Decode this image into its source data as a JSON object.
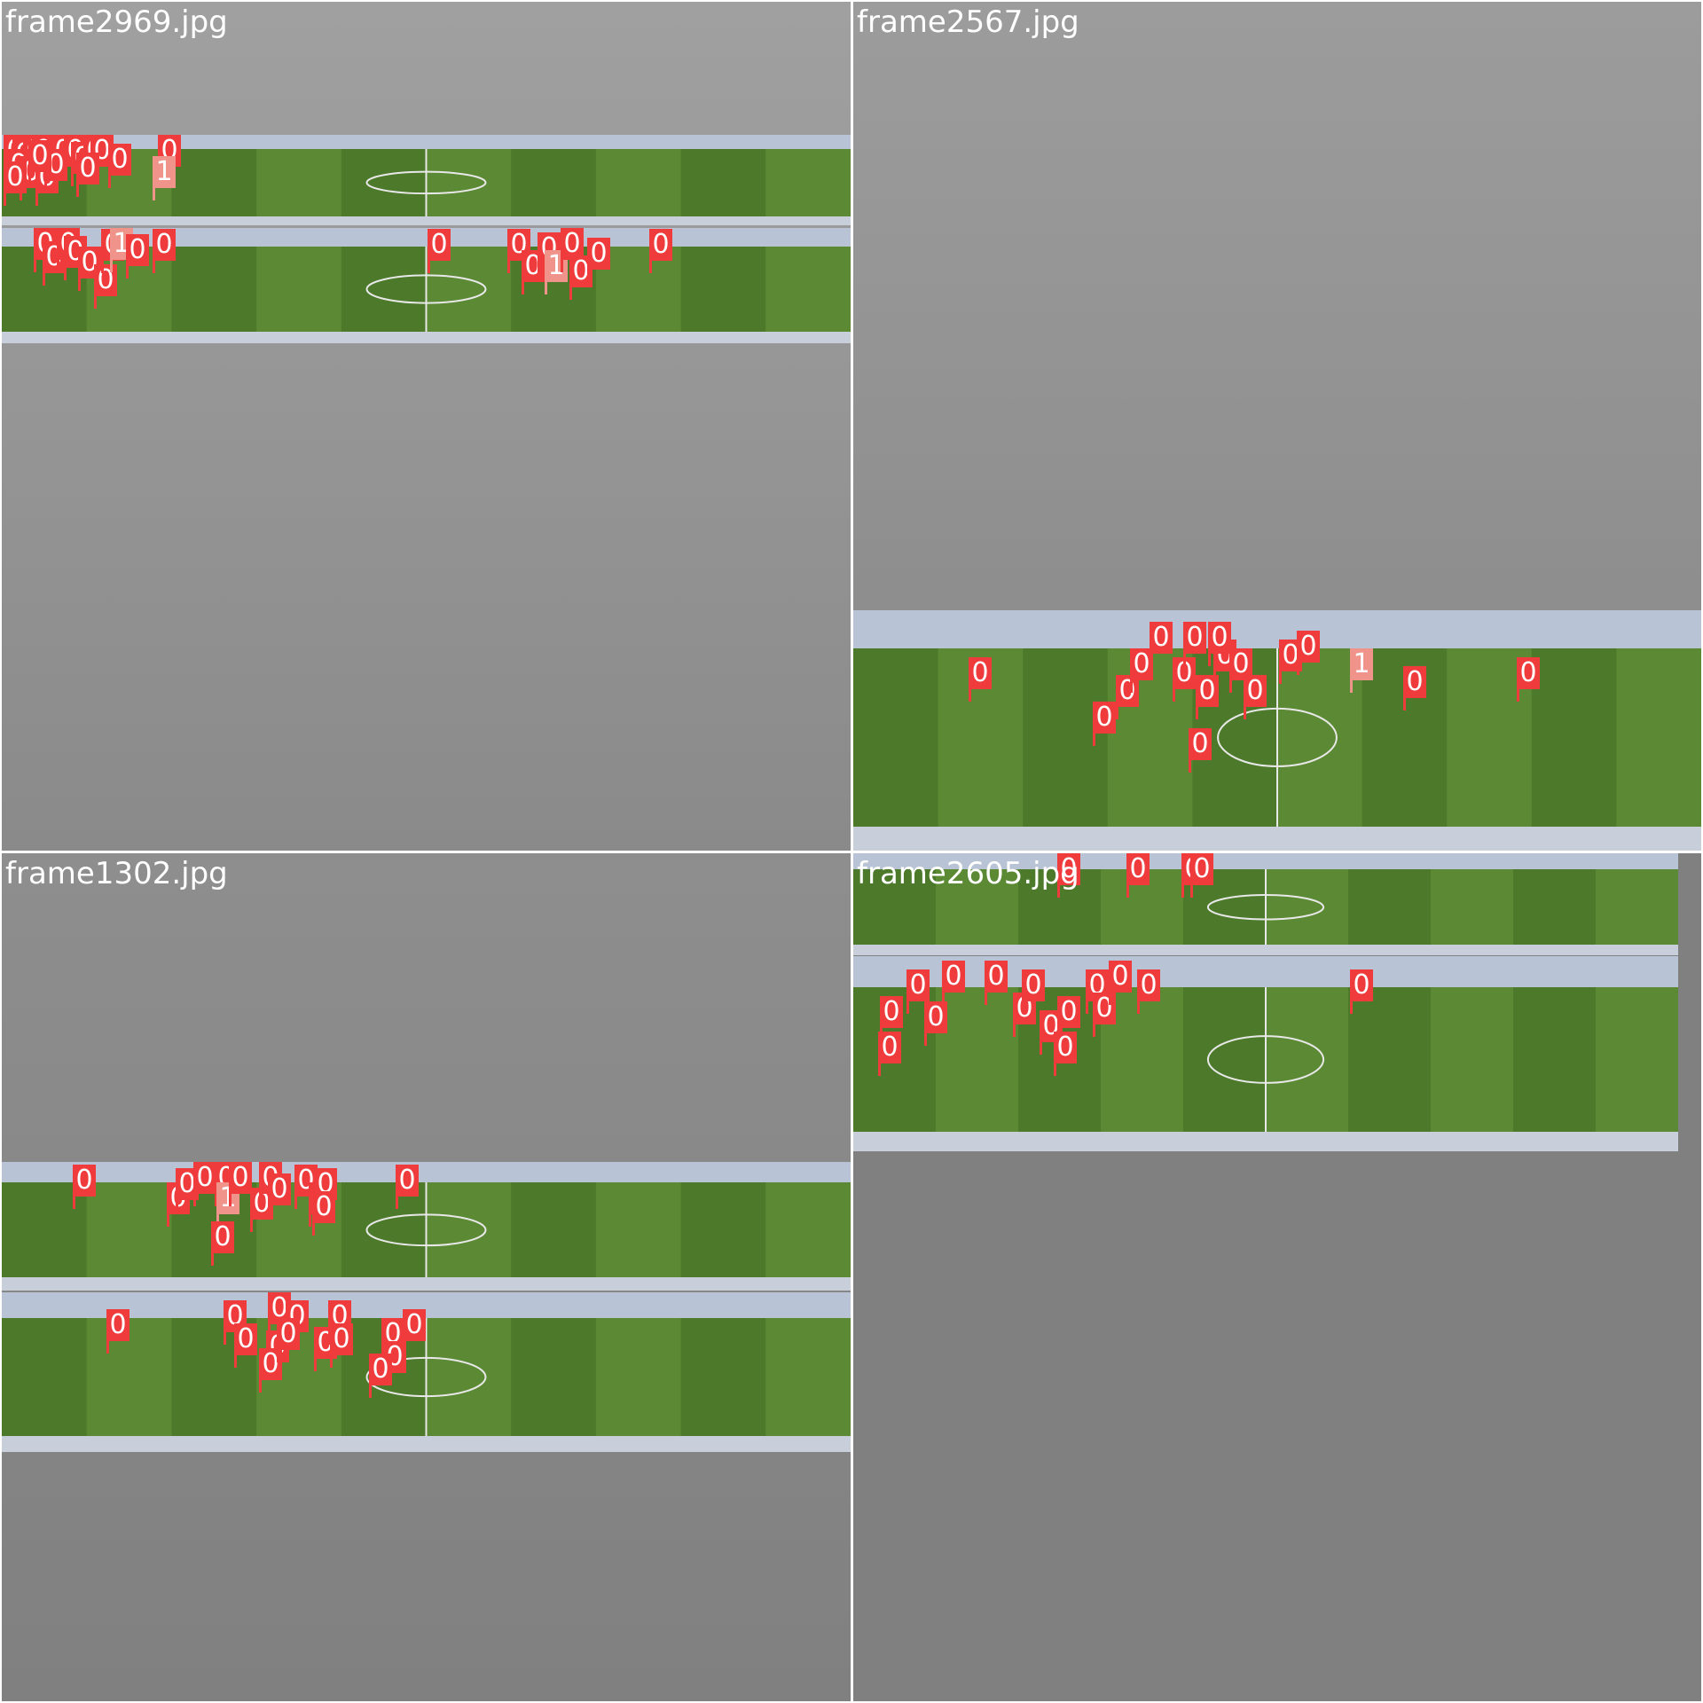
{
  "colors": {
    "class0": "#ef3b3b",
    "class1": "#f0938a",
    "bg_top": "#9a9a9a",
    "bg_bottom": "#808080",
    "grass_a": "#5c8a34",
    "grass_b": "#4c7a2a",
    "stand": "#b8c4d6",
    "divider": "#ffffff"
  },
  "cells": [
    {
      "filename": "frame2969.jpg",
      "strips": [
        {
          "detections": [
            {
              "label": "0",
              "cls": 0
            },
            {
              "label": "0",
              "cls": 0
            },
            {
              "label": "0",
              "cls": 0
            },
            {
              "label": "0",
              "cls": 0
            },
            {
              "label": "0",
              "cls": 0
            },
            {
              "label": "0",
              "cls": 0
            },
            {
              "label": "0",
              "cls": 0
            },
            {
              "label": "0",
              "cls": 0
            },
            {
              "label": "0",
              "cls": 0
            },
            {
              "label": "0",
              "cls": 0
            },
            {
              "label": "0",
              "cls": 0
            },
            {
              "label": "0",
              "cls": 0
            },
            {
              "label": "0",
              "cls": 0
            },
            {
              "label": "0",
              "cls": 0
            },
            {
              "label": "0",
              "cls": 0
            },
            {
              "label": "0",
              "cls": 0
            },
            {
              "label": "0",
              "cls": 0
            },
            {
              "label": "0",
              "cls": 0
            },
            {
              "label": "0",
              "cls": 0
            },
            {
              "label": "1",
              "cls": 1
            }
          ]
        },
        {
          "detections": [
            {
              "label": "0",
              "cls": 0
            },
            {
              "label": "0",
              "cls": 0
            },
            {
              "label": "0",
              "cls": 0
            },
            {
              "label": "0",
              "cls": 0
            },
            {
              "label": "0",
              "cls": 0
            },
            {
              "label": "0",
              "cls": 0
            },
            {
              "label": "0",
              "cls": 0
            },
            {
              "label": "1",
              "cls": 1
            },
            {
              "label": "0",
              "cls": 0
            },
            {
              "label": "0",
              "cls": 0
            },
            {
              "label": "0",
              "cls": 0
            },
            {
              "label": "0",
              "cls": 0
            },
            {
              "label": "0",
              "cls": 0
            },
            {
              "label": "0",
              "cls": 0
            },
            {
              "label": "1",
              "cls": 1
            },
            {
              "label": "0",
              "cls": 0
            },
            {
              "label": "0",
              "cls": 0
            },
            {
              "label": "0",
              "cls": 0
            },
            {
              "label": "0",
              "cls": 0
            }
          ]
        }
      ]
    },
    {
      "filename": "frame2567.jpg",
      "strips": [
        {
          "detections": [
            {
              "label": "0",
              "cls": 0
            },
            {
              "label": "0",
              "cls": 0
            },
            {
              "label": "0",
              "cls": 0
            },
            {
              "label": "0",
              "cls": 0
            },
            {
              "label": "0",
              "cls": 0
            },
            {
              "label": "0",
              "cls": 0
            },
            {
              "label": "0",
              "cls": 0
            },
            {
              "label": "0",
              "cls": 0
            },
            {
              "label": "0",
              "cls": 0
            },
            {
              "label": "0",
              "cls": 0
            },
            {
              "label": "0",
              "cls": 0
            },
            {
              "label": "0",
              "cls": 0
            },
            {
              "label": "1",
              "cls": 1
            },
            {
              "label": "0",
              "cls": 0
            },
            {
              "label": "0",
              "cls": 0
            },
            {
              "label": "0",
              "cls": 0
            },
            {
              "label": "0",
              "cls": 0
            },
            {
              "label": "0",
              "cls": 0
            }
          ]
        }
      ]
    },
    {
      "filename": "frame1302.jpg",
      "strips": [
        {
          "detections": [
            {
              "label": "0",
              "cls": 0
            },
            {
              "label": "0",
              "cls": 0
            },
            {
              "label": "0",
              "cls": 0
            },
            {
              "label": "0",
              "cls": 0
            },
            {
              "label": "0",
              "cls": 0
            },
            {
              "label": "1",
              "cls": 1
            },
            {
              "label": "0",
              "cls": 0
            },
            {
              "label": "0",
              "cls": 0
            },
            {
              "label": "0",
              "cls": 0
            },
            {
              "label": "0",
              "cls": 0
            },
            {
              "label": "0",
              "cls": 0
            },
            {
              "label": "0",
              "cls": 0
            },
            {
              "label": "0",
              "cls": 0
            },
            {
              "label": "0",
              "cls": 0
            },
            {
              "label": "0",
              "cls": 0
            },
            {
              "label": "0",
              "cls": 0
            }
          ]
        },
        {
          "detections": [
            {
              "label": "0",
              "cls": 0
            },
            {
              "label": "0",
              "cls": 0
            },
            {
              "label": "0",
              "cls": 0
            },
            {
              "label": "0",
              "cls": 0
            },
            {
              "label": "0",
              "cls": 0
            },
            {
              "label": "0",
              "cls": 0
            },
            {
              "label": "0",
              "cls": 0
            },
            {
              "label": "0",
              "cls": 0
            },
            {
              "label": "0",
              "cls": 0
            },
            {
              "label": "0",
              "cls": 0
            },
            {
              "label": "0",
              "cls": 0
            },
            {
              "label": "0",
              "cls": 0
            },
            {
              "label": "0",
              "cls": 0
            },
            {
              "label": "0",
              "cls": 0
            },
            {
              "label": "0",
              "cls": 0
            }
          ]
        }
      ]
    },
    {
      "filename": "frame2605.jpg",
      "strips": [
        {
          "detections": [
            {
              "label": "0",
              "cls": 0
            },
            {
              "label": "0",
              "cls": 0
            },
            {
              "label": "0",
              "cls": 0
            },
            {
              "label": "0",
              "cls": 0
            }
          ]
        },
        {
          "detections": [
            {
              "label": "0",
              "cls": 0
            },
            {
              "label": "0",
              "cls": 0
            },
            {
              "label": "0",
              "cls": 0
            },
            {
              "label": "0",
              "cls": 0
            },
            {
              "label": "0",
              "cls": 0
            },
            {
              "label": "0",
              "cls": 0
            },
            {
              "label": "0",
              "cls": 0
            },
            {
              "label": "0",
              "cls": 0
            },
            {
              "label": "0",
              "cls": 0
            },
            {
              "label": "0",
              "cls": 0
            },
            {
              "label": "0",
              "cls": 0
            },
            {
              "label": "0",
              "cls": 0
            },
            {
              "label": "0",
              "cls": 0
            },
            {
              "label": "0",
              "cls": 0
            },
            {
              "label": "0",
              "cls": 0
            },
            {
              "label": "0",
              "cls": 0
            }
          ]
        }
      ]
    }
  ]
}
